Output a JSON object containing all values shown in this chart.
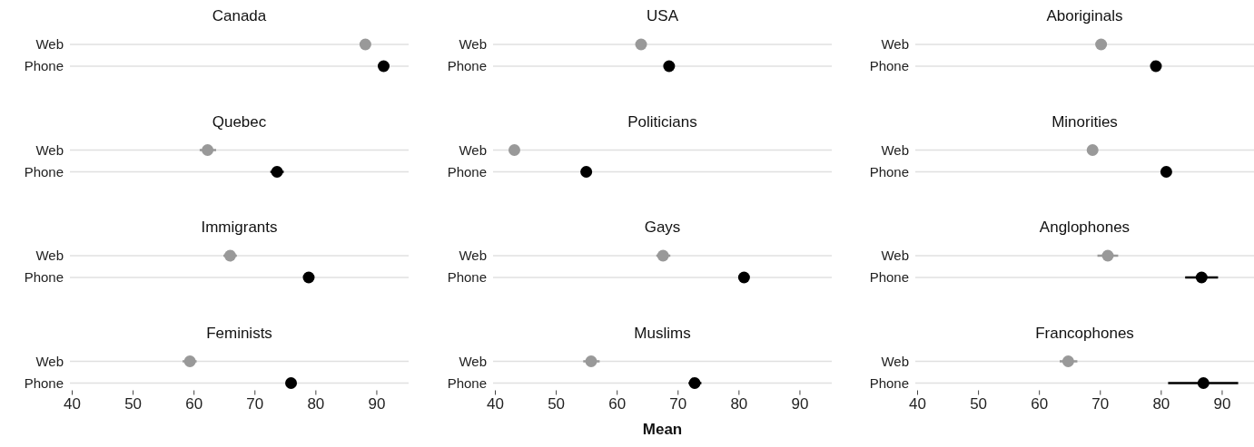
{
  "chart_data": [
    {
      "type": "scatter",
      "orientation": "horizontal",
      "title": "Canada",
      "categories": [
        "Web",
        "Phone"
      ],
      "values": [
        88.2,
        91.2
      ],
      "colors": [
        "#999999",
        "#000000"
      ],
      "errors": [
        null,
        null
      ],
      "xlim": [
        39.7,
        95.3
      ],
      "grid": "y",
      "tick_labels": "y"
    },
    {
      "type": "scatter",
      "orientation": "horizontal",
      "title": "USA",
      "categories": [
        "Web",
        "Phone"
      ],
      "values": [
        64,
        68.6
      ],
      "colors": [
        "#999999",
        "#000000"
      ],
      "errors": [
        null,
        null
      ],
      "xlim": [
        39.7,
        95.3
      ],
      "grid": "y",
      "tick_labels": "y"
    },
    {
      "type": "scatter",
      "orientation": "horizontal",
      "title": "Aboriginals",
      "categories": [
        "Web",
        "Phone"
      ],
      "values": [
        70.2,
        79.2
      ],
      "colors": [
        "#999999",
        "#000000"
      ],
      "errors": [
        null,
        null
      ],
      "xlim": [
        39.7,
        95.3
      ],
      "grid": "y",
      "tick_labels": "y"
    },
    {
      "type": "scatter",
      "orientation": "horizontal",
      "title": "Quebec",
      "categories": [
        "Web",
        "Phone"
      ],
      "values": [
        62.3,
        73.7
      ],
      "colors": [
        "#999999",
        "#000000"
      ],
      "errors": [
        [
          61,
          63.7
        ],
        [
          72.6,
          74.8
        ]
      ],
      "xlim": [
        39.7,
        95.3
      ],
      "grid": "y",
      "tick_labels": "y"
    },
    {
      "type": "scatter",
      "orientation": "horizontal",
      "title": "Politicians",
      "categories": [
        "Web",
        "Phone"
      ],
      "values": [
        43.2,
        55
      ],
      "colors": [
        "#999999",
        "#000000"
      ],
      "errors": [
        null,
        null
      ],
      "xlim": [
        39.7,
        95.3
      ],
      "grid": "y",
      "tick_labels": "y"
    },
    {
      "type": "scatter",
      "orientation": "horizontal",
      "title": "Minorities",
      "categories": [
        "Web",
        "Phone"
      ],
      "values": [
        68.8,
        80.9
      ],
      "colors": [
        "#999999",
        "#000000"
      ],
      "errors": [
        null,
        null
      ],
      "xlim": [
        39.7,
        95.3
      ],
      "grid": "y",
      "tick_labels": "y"
    },
    {
      "type": "scatter",
      "orientation": "horizontal",
      "title": "Immigrants",
      "categories": [
        "Web",
        "Phone"
      ],
      "values": [
        66,
        78.9
      ],
      "colors": [
        "#999999",
        "#000000"
      ],
      "errors": [
        [
          64.9,
          67.1
        ],
        null
      ],
      "xlim": [
        39.7,
        95.3
      ],
      "grid": "y",
      "tick_labels": "y"
    },
    {
      "type": "scatter",
      "orientation": "horizontal",
      "title": "Gays",
      "categories": [
        "Web",
        "Phone"
      ],
      "values": [
        67.6,
        80.9
      ],
      "colors": [
        "#999999",
        "#000000"
      ],
      "errors": [
        [
          66.5,
          68.8
        ],
        null
      ],
      "xlim": [
        39.7,
        95.3
      ],
      "grid": "y",
      "tick_labels": "y"
    },
    {
      "type": "scatter",
      "orientation": "horizontal",
      "title": "Anglophones",
      "categories": [
        "Web",
        "Phone"
      ],
      "values": [
        71.3,
        86.7
      ],
      "colors": [
        "#999999",
        "#000000"
      ],
      "errors": [
        [
          69.6,
          73
        ],
        [
          84,
          89.4
        ]
      ],
      "xlim": [
        39.7,
        95.3
      ],
      "grid": "y",
      "tick_labels": "y"
    },
    {
      "type": "scatter",
      "orientation": "horizontal",
      "title": "Feminists",
      "categories": [
        "Web",
        "Phone"
      ],
      "values": [
        59.4,
        76
      ],
      "colors": [
        "#999999",
        "#000000"
      ],
      "errors": [
        [
          58.2,
          60.5
        ],
        null
      ],
      "xlim": [
        39.7,
        95.3
      ],
      "xticks": [
        40,
        50,
        60,
        70,
        80,
        90
      ],
      "grid": "y"
    },
    {
      "type": "scatter",
      "orientation": "horizontal",
      "title": "Muslims",
      "categories": [
        "Web",
        "Phone"
      ],
      "values": [
        55.8,
        72.8
      ],
      "colors": [
        "#999999",
        "#000000"
      ],
      "errors": [
        [
          54.5,
          57.2
        ],
        [
          71.8,
          73.9
        ]
      ],
      "xlim": [
        39.7,
        95.3
      ],
      "xticks": [
        40,
        50,
        60,
        70,
        80,
        90
      ],
      "grid": "y",
      "xlabel": "Mean"
    },
    {
      "type": "scatter",
      "orientation": "horizontal",
      "title": "Francophones",
      "categories": [
        "Web",
        "Phone"
      ],
      "values": [
        64.8,
        87
      ],
      "colors": [
        "#999999",
        "#000000"
      ],
      "errors": [
        [
          63.4,
          66.3
        ],
        [
          81.2,
          92.7
        ]
      ],
      "xlim": [
        39.7,
        95.3
      ],
      "xticks": [
        40,
        50,
        60,
        70,
        80,
        90
      ],
      "grid": "y"
    }
  ]
}
